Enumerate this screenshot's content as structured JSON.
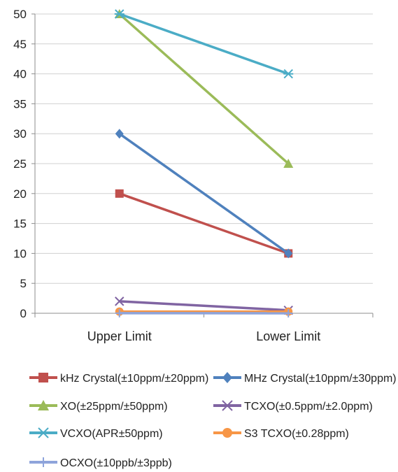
{
  "chart_data": {
    "type": "line",
    "categories": [
      "Upper Limit",
      "Lower Limit"
    ],
    "ylim": [
      0,
      50
    ],
    "yticks": [
      0,
      5,
      10,
      15,
      20,
      25,
      30,
      35,
      40,
      45,
      50
    ],
    "grid": true,
    "legend_position": "bottom",
    "series": [
      {
        "name": "kHz Crystal(±10ppm/±20ppm)",
        "values": [
          20,
          10
        ],
        "color": "#c0504d",
        "marker": "square"
      },
      {
        "name": "MHz Crystal(±10ppm/±30ppm)",
        "values": [
          30,
          10
        ],
        "color": "#4f81bd",
        "marker": "diamond"
      },
      {
        "name": "XO(±25ppm/±50ppm)",
        "values": [
          50,
          25
        ],
        "color": "#9bbb59",
        "marker": "triangle"
      },
      {
        "name": "TCXO(±0.5ppm/±2.0ppm)",
        "values": [
          2,
          0.5
        ],
        "color": "#8064a2",
        "marker": "x"
      },
      {
        "name": "VCXO(APR±50ppm)",
        "values": [
          50,
          40
        ],
        "color": "#4bacc6",
        "marker": "star"
      },
      {
        "name": "S3 TCXO(±0.28ppm)",
        "values": [
          0.28,
          0.28
        ],
        "color": "#f79646",
        "marker": "circle"
      },
      {
        "name": "OCXO(±10ppb/±3ppb)",
        "values": [
          0.01,
          0.003
        ],
        "color": "#8ea4db",
        "marker": "plus"
      }
    ]
  }
}
